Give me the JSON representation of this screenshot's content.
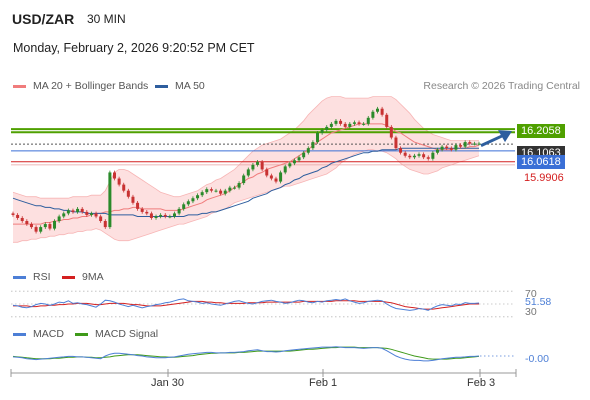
{
  "header": {
    "symbol": "USD/ZAR",
    "timeframe": "30 MIN",
    "datetime": "Monday, February 2, 2026 9:20:52 PM CET"
  },
  "legends": {
    "main": [
      {
        "label": "MA 20 + Bollinger Bands",
        "color": "#f07c7c"
      },
      {
        "label": "MA 50",
        "color": "#2e5e9e"
      }
    ],
    "rsi": [
      {
        "label": "RSI",
        "color": "#4d7fd6"
      },
      {
        "label": "9MA",
        "color": "#d42020"
      }
    ],
    "macd": [
      {
        "label": "MACD",
        "color": "#4d7fd6"
      },
      {
        "label": "MACD Signal",
        "color": "#3f9a1a"
      }
    ]
  },
  "credit": "Research © 2026 Trading Central",
  "colors": {
    "resistance": "#4fa000",
    "pivot": "#3a6fd6",
    "support": "#d42020",
    "last": "#333333",
    "candle_up": "#2a8a2a",
    "candle_down": "#c83232",
    "band_fill": "#fde0e0"
  },
  "chart_data": [
    {
      "type": "candlestick",
      "title": "USD/ZAR 30 MIN",
      "x_labels": [
        "Jan 30",
        "Feb 1",
        "Feb 3"
      ],
      "price_levels": [
        {
          "label": "16.2058",
          "value": 16.2058,
          "kind": "resistance"
        },
        {
          "label": "16.1063",
          "value": 16.1063,
          "kind": "last"
        },
        {
          "label": "16.0618",
          "value": 16.0618,
          "kind": "pivot"
        },
        {
          "label": "15.9906",
          "value": 15.9906,
          "kind": "support"
        }
      ],
      "extra_resistance_line": 16.185,
      "ylim": [
        15.33,
        16.45
      ],
      "close": [
        15.64,
        15.62,
        15.6,
        15.58,
        15.56,
        15.53,
        15.56,
        15.58,
        15.55,
        15.6,
        15.63,
        15.65,
        15.67,
        15.66,
        15.68,
        15.66,
        15.64,
        15.65,
        15.63,
        15.6,
        15.56,
        15.92,
        15.88,
        15.84,
        15.8,
        15.76,
        15.72,
        15.68,
        15.66,
        15.65,
        15.62,
        15.63,
        15.64,
        15.63,
        15.63,
        15.65,
        15.68,
        15.71,
        15.73,
        15.75,
        15.77,
        15.79,
        15.81,
        15.8,
        15.8,
        15.78,
        15.8,
        15.82,
        15.82,
        15.85,
        15.9,
        15.94,
        15.97,
        15.99,
        15.94,
        15.9,
        15.88,
        15.86,
        15.92,
        15.96,
        15.98,
        16.0,
        16.02,
        16.05,
        16.08,
        16.12,
        16.18,
        16.2,
        16.22,
        16.24,
        16.26,
        16.24,
        16.22,
        16.24,
        16.25,
        16.24,
        16.24,
        16.28,
        16.32,
        16.34,
        16.3,
        16.22,
        16.15,
        16.08,
        16.05,
        16.03,
        16.02,
        16.03,
        16.04,
        16.02,
        16.01,
        16.05,
        16.07,
        16.09,
        16.08,
        16.07,
        16.1,
        16.09,
        16.12,
        16.11,
        16.11,
        16.11
      ],
      "ma20": [
        15.58,
        15.58,
        15.58,
        15.58,
        15.58,
        15.58,
        15.58,
        15.59,
        15.59,
        15.6,
        15.6,
        15.61,
        15.61,
        15.62,
        15.62,
        15.63,
        15.63,
        15.64,
        15.65,
        15.65,
        15.66,
        15.66,
        15.67,
        15.67,
        15.68,
        15.68,
        15.69,
        15.69,
        15.68,
        15.68,
        15.68,
        15.68,
        15.68,
        15.67,
        15.67,
        15.67,
        15.67,
        15.68,
        15.69,
        15.7,
        15.71,
        15.72,
        15.74,
        15.75,
        15.76,
        15.77,
        15.78,
        15.8,
        15.82,
        15.84,
        15.86,
        15.88,
        15.89,
        15.91,
        15.92,
        15.94,
        15.95,
        15.96,
        15.97,
        15.98,
        15.99,
        16.01,
        16.03,
        16.05,
        16.07,
        16.1,
        16.12,
        16.14,
        16.16,
        16.18,
        16.19,
        16.2,
        16.21,
        16.22,
        16.23,
        16.24,
        16.24,
        16.24,
        16.24,
        16.24,
        16.24,
        16.23,
        16.21,
        16.19,
        16.18,
        16.16,
        16.14,
        16.12,
        16.11,
        16.1,
        16.09,
        16.08,
        16.07,
        16.07,
        16.07,
        16.07,
        16.08,
        16.08,
        16.08,
        16.09,
        16.09,
        16.1
      ],
      "upper_band": [
        15.79,
        15.78,
        15.77,
        15.76,
        15.76,
        15.76,
        15.75,
        15.75,
        15.75,
        15.75,
        15.75,
        15.75,
        15.75,
        15.76,
        15.76,
        15.76,
        15.76,
        15.77,
        15.77,
        15.77,
        15.8,
        15.86,
        15.92,
        15.94,
        15.94,
        15.93,
        15.91,
        15.89,
        15.87,
        15.85,
        15.83,
        15.81,
        15.79,
        15.78,
        15.77,
        15.76,
        15.76,
        15.77,
        15.78,
        15.79,
        15.8,
        15.82,
        15.84,
        15.85,
        15.87,
        15.88,
        15.9,
        15.92,
        15.94,
        15.97,
        16.0,
        16.03,
        16.06,
        16.08,
        16.1,
        16.11,
        16.12,
        16.13,
        16.14,
        16.16,
        16.18,
        16.2,
        16.23,
        16.26,
        16.3,
        16.33,
        16.36,
        16.39,
        16.41,
        16.42,
        16.42,
        16.42,
        16.41,
        16.41,
        16.41,
        16.41,
        16.41,
        16.41,
        16.42,
        16.42,
        16.42,
        16.42,
        16.42,
        16.4,
        16.37,
        16.34,
        16.31,
        16.27,
        16.24,
        16.21,
        16.19,
        16.17,
        16.16,
        16.15,
        16.14,
        16.13,
        16.13,
        16.13,
        16.13,
        16.13,
        16.13,
        16.13
      ],
      "lower_band": [
        15.46,
        15.46,
        15.47,
        15.47,
        15.48,
        15.48,
        15.49,
        15.49,
        15.5,
        15.5,
        15.51,
        15.51,
        15.52,
        15.52,
        15.53,
        15.53,
        15.54,
        15.54,
        15.55,
        15.54,
        15.52,
        15.5,
        15.48,
        15.47,
        15.47,
        15.47,
        15.48,
        15.49,
        15.5,
        15.51,
        15.52,
        15.53,
        15.54,
        15.55,
        15.56,
        15.57,
        15.58,
        15.58,
        15.59,
        15.6,
        15.61,
        15.62,
        15.63,
        15.65,
        15.66,
        15.67,
        15.68,
        15.7,
        15.72,
        15.73,
        15.74,
        15.75,
        15.76,
        15.77,
        15.78,
        15.79,
        15.8,
        15.81,
        15.82,
        15.83,
        15.83,
        15.84,
        15.85,
        15.86,
        15.87,
        15.88,
        15.89,
        15.9,
        15.91,
        15.93,
        15.95,
        15.98,
        16.0,
        16.02,
        16.04,
        16.05,
        16.06,
        16.07,
        16.07,
        16.06,
        16.06,
        16.05,
        16.03,
        16.01,
        15.98,
        15.96,
        15.94,
        15.93,
        15.92,
        15.91,
        15.91,
        15.92,
        15.93,
        15.95,
        15.96,
        15.97,
        15.98,
        15.99,
        16.0,
        16.01,
        16.02,
        16.03
      ],
      "ma50": [
        15.75,
        15.74,
        15.73,
        15.72,
        15.71,
        15.7,
        15.7,
        15.69,
        15.69,
        15.68,
        15.68,
        15.67,
        15.67,
        15.66,
        15.66,
        15.66,
        15.65,
        15.65,
        15.65,
        15.65,
        15.65,
        15.64,
        15.64,
        15.64,
        15.64,
        15.64,
        15.64,
        15.63,
        15.63,
        15.63,
        15.63,
        15.63,
        15.63,
        15.63,
        15.63,
        15.63,
        15.63,
        15.63,
        15.64,
        15.64,
        15.64,
        15.65,
        15.65,
        15.66,
        15.66,
        15.67,
        15.68,
        15.69,
        15.7,
        15.71,
        15.72,
        15.73,
        15.75,
        15.76,
        15.77,
        15.78,
        15.8,
        15.81,
        15.82,
        15.84,
        15.85,
        15.87,
        15.88,
        15.9,
        15.91,
        15.92,
        15.93,
        15.95,
        15.96,
        15.98,
        15.99,
        16.0,
        16.01,
        16.02,
        16.03,
        16.04,
        16.05,
        16.05,
        16.06,
        16.06,
        16.07,
        16.07,
        16.07,
        16.07,
        16.08,
        16.08,
        16.08,
        16.08,
        16.08,
        16.08,
        16.08,
        16.08,
        16.08,
        16.08,
        16.08,
        16.08,
        16.08,
        16.08,
        16.08,
        16.08,
        16.08,
        16.08
      ]
    },
    {
      "type": "line",
      "title": "RSI",
      "axis_labels": [
        "70",
        "30"
      ],
      "current_label": "51.58",
      "ylim": [
        25,
        75
      ],
      "rsi": [
        48,
        47,
        45,
        44,
        46,
        49,
        51,
        50,
        48,
        50,
        53,
        52,
        55,
        51,
        52,
        50,
        49,
        47,
        45,
        50,
        56,
        55,
        53,
        50,
        48,
        46,
        48,
        46,
        44,
        46,
        47,
        49,
        50,
        52,
        53,
        55,
        57,
        58,
        55,
        54,
        53,
        51,
        52,
        50,
        49,
        48,
        50,
        52,
        54,
        55,
        53,
        51,
        50,
        52,
        54,
        55,
        56,
        54,
        53,
        51,
        52,
        54,
        56,
        55,
        53,
        52,
        54,
        53,
        55,
        56,
        57,
        56,
        58,
        55,
        53,
        51,
        52,
        54,
        55,
        56,
        55,
        50,
        46,
        43,
        42,
        41,
        40,
        41,
        43,
        42,
        40,
        44,
        47,
        49,
        48,
        47,
        50,
        49,
        52,
        51,
        51,
        51.58
      ],
      "ma9": [
        47,
        47,
        47,
        47,
        46,
        46,
        47,
        47,
        48,
        48,
        49,
        49,
        50,
        50,
        51,
        51,
        51,
        50,
        49,
        49,
        50,
        51,
        51,
        51,
        51,
        50,
        49,
        49,
        48,
        47,
        47,
        47,
        47,
        48,
        49,
        50,
        51,
        52,
        53,
        54,
        54,
        54,
        53,
        53,
        52,
        52,
        51,
        51,
        51,
        51,
        51,
        52,
        52,
        52,
        52,
        53,
        53,
        53,
        53,
        53,
        53,
        53,
        53,
        54,
        54,
        54,
        54,
        54,
        54,
        54,
        55,
        55,
        55,
        55,
        55,
        54,
        54,
        54,
        54,
        54,
        54,
        53,
        52,
        50,
        48,
        46,
        45,
        44,
        43,
        42,
        42,
        42,
        43,
        44,
        45,
        46,
        47,
        48,
        49,
        50,
        50,
        50
      ]
    },
    {
      "type": "line",
      "title": "MACD",
      "current_label": "-0.00",
      "ylim": [
        -0.036,
        0.036
      ],
      "macd": [
        -0.002,
        -0.003,
        -0.004,
        -0.006,
        -0.007,
        -0.008,
        -0.007,
        -0.006,
        -0.005,
        -0.004,
        -0.003,
        -0.002,
        -0.001,
        -0.001,
        -0.002,
        -0.002,
        -0.003,
        -0.004,
        -0.005,
        -0.006,
        0.0,
        0.004,
        0.006,
        0.006,
        0.005,
        0.004,
        0.003,
        0.001,
        0.0,
        -0.002,
        -0.003,
        -0.004,
        -0.004,
        -0.004,
        -0.003,
        -0.002,
        0.0,
        0.002,
        0.004,
        0.005,
        0.006,
        0.007,
        0.008,
        0.008,
        0.007,
        0.007,
        0.007,
        0.008,
        0.008,
        0.009,
        0.01,
        0.012,
        0.013,
        0.014,
        0.012,
        0.01,
        0.01,
        0.009,
        0.01,
        0.012,
        0.013,
        0.014,
        0.015,
        0.016,
        0.017,
        0.018,
        0.019,
        0.02,
        0.02,
        0.02,
        0.021,
        0.02,
        0.019,
        0.019,
        0.019,
        0.018,
        0.017,
        0.018,
        0.019,
        0.019,
        0.017,
        0.012,
        0.006,
        0.0,
        -0.004,
        -0.007,
        -0.009,
        -0.01,
        -0.01,
        -0.011,
        -0.011,
        -0.01,
        -0.008,
        -0.006,
        -0.005,
        -0.004,
        -0.003,
        -0.003,
        -0.002,
        -0.001,
        -0.001,
        -0.0
      ],
      "signal": [
        -0.001,
        -0.002,
        -0.003,
        -0.004,
        -0.005,
        -0.006,
        -0.006,
        -0.006,
        -0.006,
        -0.005,
        -0.005,
        -0.004,
        -0.003,
        -0.003,
        -0.002,
        -0.002,
        -0.003,
        -0.003,
        -0.004,
        -0.004,
        -0.003,
        -0.002,
        0.0,
        0.001,
        0.002,
        0.003,
        0.003,
        0.003,
        0.002,
        0.001,
        0.0,
        -0.001,
        -0.002,
        -0.002,
        -0.003,
        -0.003,
        -0.002,
        -0.001,
        0.0,
        0.001,
        0.003,
        0.004,
        0.005,
        0.006,
        0.006,
        0.007,
        0.007,
        0.007,
        0.007,
        0.008,
        0.008,
        0.009,
        0.01,
        0.011,
        0.011,
        0.011,
        0.011,
        0.011,
        0.011,
        0.011,
        0.011,
        0.012,
        0.013,
        0.014,
        0.015,
        0.015,
        0.016,
        0.017,
        0.018,
        0.019,
        0.019,
        0.02,
        0.02,
        0.02,
        0.02,
        0.019,
        0.019,
        0.019,
        0.019,
        0.019,
        0.018,
        0.017,
        0.015,
        0.012,
        0.009,
        0.006,
        0.003,
        0.0,
        -0.002,
        -0.004,
        -0.006,
        -0.007,
        -0.007,
        -0.007,
        -0.007,
        -0.006,
        -0.005,
        -0.005,
        -0.004,
        -0.003,
        -0.002,
        -0.001
      ]
    }
  ]
}
